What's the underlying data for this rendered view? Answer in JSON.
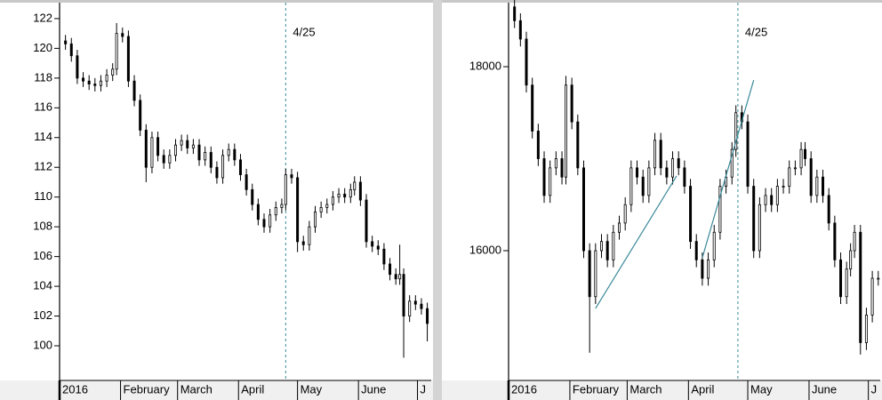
{
  "chart_data": [
    {
      "type": "candlestick",
      "xlim": [
        0,
        189
      ],
      "ylim": [
        97.67,
        123.25
      ],
      "yticks": [
        100,
        102,
        104,
        106,
        108,
        110,
        112,
        114,
        116,
        118,
        120,
        122
      ],
      "xticks": [
        {
          "value": 0,
          "label": "2016"
        },
        {
          "value": 31,
          "label": "February"
        },
        {
          "value": 60,
          "label": "March"
        },
        {
          "value": 91,
          "label": "April"
        },
        {
          "value": 121,
          "label": "May"
        },
        {
          "value": 152,
          "label": "June"
        },
        {
          "value": 182,
          "label": "J"
        }
      ],
      "marker": {
        "x": 115,
        "label": "4/25",
        "color": "#3a8a9a",
        "label_color": "#2233cc"
      },
      "color": "#000000",
      "x": [
        3,
        6,
        9,
        12,
        15,
        18,
        21,
        24,
        27,
        29,
        32,
        35,
        38,
        41,
        44,
        47,
        50,
        53,
        56,
        59,
        62,
        65,
        68,
        71,
        74,
        77,
        80,
        83,
        86,
        89,
        92,
        95,
        98,
        101,
        104,
        107,
        110,
        113,
        115,
        118,
        121,
        124,
        127,
        130,
        133,
        136,
        139,
        142,
        145,
        148,
        150,
        153,
        156,
        159,
        162,
        165,
        168,
        171,
        173,
        175,
        178,
        181,
        184,
        187
      ],
      "open": [
        120.5,
        120.3,
        119.5,
        118.0,
        117.8,
        117.6,
        117.5,
        117.8,
        118.2,
        118.6,
        121.0,
        120.8,
        117.8,
        116.5,
        114.5,
        112.0,
        114.0,
        112.8,
        112.3,
        112.8,
        113.5,
        113.8,
        113.3,
        113.5,
        112.5,
        113.0,
        112.0,
        111.3,
        112.8,
        113.2,
        112.5,
        111.5,
        110.5,
        109.5,
        108.5,
        108.0,
        108.8,
        109.3,
        109.5,
        111.5,
        111.3,
        107.0,
        106.8,
        108.0,
        109.0,
        109.3,
        109.5,
        110.0,
        110.2,
        110.0,
        110.5,
        111.0,
        109.8,
        107.0,
        106.7,
        106.5,
        105.5,
        104.8,
        104.5,
        104.8,
        102.0,
        103.0,
        102.8,
        102.5
      ],
      "high": [
        120.9,
        120.7,
        119.9,
        118.4,
        118.2,
        118.0,
        118.2,
        118.6,
        119.0,
        121.7,
        121.4,
        121.2,
        118.2,
        116.9,
        114.9,
        114.4,
        114.4,
        113.2,
        113.2,
        113.9,
        114.2,
        114.2,
        113.9,
        113.9,
        113.4,
        113.4,
        112.4,
        113.2,
        113.6,
        113.6,
        112.9,
        111.9,
        110.9,
        109.9,
        108.9,
        109.2,
        109.7,
        109.9,
        111.9,
        111.9,
        111.7,
        107.4,
        108.4,
        109.4,
        109.7,
        109.9,
        110.4,
        110.6,
        110.6,
        110.9,
        111.4,
        111.4,
        110.2,
        107.4,
        107.1,
        106.9,
        105.9,
        105.2,
        106.8,
        105.2,
        103.4,
        103.4,
        103.2,
        102.9
      ],
      "low": [
        119.9,
        119.1,
        117.6,
        117.4,
        117.2,
        117.1,
        117.1,
        117.4,
        117.8,
        118.2,
        120.4,
        117.4,
        116.1,
        114.1,
        111.0,
        111.6,
        112.4,
        111.9,
        111.9,
        112.4,
        113.1,
        112.9,
        112.9,
        112.1,
        112.1,
        111.6,
        110.9,
        110.9,
        112.4,
        112.1,
        111.1,
        110.1,
        109.1,
        108.1,
        107.6,
        107.6,
        108.4,
        108.9,
        109.1,
        110.9,
        106.3,
        106.4,
        106.4,
        107.6,
        108.6,
        108.9,
        109.1,
        109.6,
        109.6,
        109.6,
        110.1,
        109.4,
        106.6,
        106.3,
        106.1,
        105.1,
        104.4,
        104.1,
        104.1,
        99.2,
        101.6,
        102.4,
        102.1,
        100.3
      ],
      "close": [
        120.3,
        119.5,
        118.0,
        117.8,
        117.6,
        117.5,
        117.8,
        118.2,
        118.6,
        121.0,
        120.8,
        117.8,
        116.5,
        114.5,
        112.0,
        114.0,
        112.8,
        112.3,
        112.8,
        113.5,
        113.8,
        113.3,
        113.5,
        112.5,
        113.0,
        112.0,
        111.3,
        112.8,
        113.2,
        112.5,
        111.5,
        110.5,
        109.5,
        108.5,
        108.0,
        108.8,
        109.3,
        109.5,
        111.5,
        111.3,
        107.0,
        106.8,
        108.0,
        109.0,
        109.3,
        109.5,
        110.0,
        110.2,
        110.0,
        110.5,
        111.0,
        109.8,
        107.0,
        106.7,
        106.5,
        105.5,
        104.8,
        104.5,
        104.8,
        102.0,
        103.0,
        102.8,
        102.5,
        101.5
      ]
    },
    {
      "type": "candlestick",
      "xlim": [
        0,
        188
      ],
      "ylim": [
        14589,
        18725
      ],
      "yticks": [
        16000,
        18000
      ],
      "xticks": [
        {
          "value": 0,
          "label": "2016"
        },
        {
          "value": 31,
          "label": "February"
        },
        {
          "value": 60,
          "label": "March"
        },
        {
          "value": 91,
          "label": "April"
        },
        {
          "value": 121,
          "label": "May"
        },
        {
          "value": 152,
          "label": "June"
        },
        {
          "value": 182,
          "label": "J"
        }
      ],
      "marker": {
        "x": 116,
        "label": "4/25",
        "color": "#3a8a9a",
        "label_color": "#2233cc"
      },
      "color": "#000000",
      "trendlines": [
        {
          "x": [
            44,
            85
          ],
          "y": [
            15372,
            16812
          ],
          "color": "#3a8a9a"
        },
        {
          "x": [
            98,
            124
          ],
          "y": [
            15922,
            17855
          ],
          "color": "#3a8a9a"
        }
      ],
      "x": [
        3,
        6,
        9,
        12,
        15,
        18,
        21,
        24,
        27,
        29,
        32,
        35,
        38,
        41,
        44,
        47,
        50,
        53,
        56,
        59,
        62,
        65,
        68,
        71,
        74,
        77,
        80,
        83,
        86,
        89,
        92,
        95,
        98,
        101,
        104,
        107,
        110,
        113,
        115,
        118,
        121,
        124,
        127,
        130,
        133,
        136,
        139,
        142,
        145,
        148,
        150,
        153,
        156,
        159,
        162,
        165,
        168,
        171,
        173,
        175,
        178,
        181,
        184,
        187
      ],
      "open": [
        18650,
        18500,
        18300,
        17800,
        17300,
        17000,
        16600,
        16900,
        17000,
        16800,
        17800,
        17400,
        16900,
        16000,
        15500,
        16000,
        16100,
        15900,
        16200,
        16300,
        16500,
        16900,
        16800,
        16600,
        16900,
        17200,
        16900,
        16800,
        17000,
        16900,
        16700,
        16100,
        15900,
        15700,
        15900,
        16200,
        16700,
        16800,
        17100,
        17500,
        17400,
        16700,
        16000,
        16500,
        16600,
        16500,
        16700,
        16700,
        16900,
        16900,
        17100,
        17000,
        16600,
        16800,
        16600,
        16300,
        15900,
        15500,
        15800,
        16000,
        16200,
        15000,
        15300,
        15700
      ],
      "high": [
        18730,
        18580,
        18380,
        17880,
        17380,
        17080,
        16980,
        17080,
        17080,
        17900,
        17880,
        17480,
        16980,
        16080,
        16080,
        16180,
        16180,
        16280,
        16380,
        16580,
        16980,
        16980,
        16880,
        16980,
        17280,
        17280,
        16980,
        17080,
        17080,
        16980,
        16780,
        16180,
        15980,
        15980,
        16280,
        16780,
        16880,
        17180,
        17580,
        17580,
        17480,
        16780,
        16580,
        16680,
        16680,
        16780,
        16780,
        16980,
        16980,
        17180,
        17180,
        17080,
        16880,
        16880,
        16680,
        16380,
        15980,
        15880,
        16080,
        16280,
        16280,
        15380,
        15780,
        15780
      ],
      "low": [
        18420,
        18220,
        17720,
        17220,
        16920,
        16520,
        16520,
        16820,
        16720,
        16720,
        17320,
        16820,
        15920,
        14890,
        15420,
        15920,
        15820,
        15820,
        16120,
        16220,
        16420,
        16720,
        16520,
        16520,
        16820,
        16820,
        16720,
        16720,
        16820,
        16620,
        16020,
        15820,
        15620,
        15620,
        15820,
        16120,
        16620,
        16720,
        17020,
        17320,
        16620,
        15920,
        15920,
        16420,
        16420,
        16420,
        16620,
        16620,
        16820,
        16820,
        16920,
        16520,
        16520,
        16520,
        16220,
        15820,
        15420,
        15420,
        15720,
        15920,
        14870,
        14920,
        15220,
        15620
      ],
      "close": [
        18500,
        18300,
        17800,
        17300,
        17000,
        16600,
        16900,
        17000,
        16800,
        17800,
        17400,
        16900,
        16000,
        15500,
        16000,
        16100,
        15900,
        16200,
        16300,
        16500,
        16900,
        16800,
        16600,
        16900,
        17200,
        16900,
        16800,
        17000,
        16900,
        16700,
        16100,
        15900,
        15700,
        15900,
        16200,
        16700,
        16800,
        17100,
        17500,
        17400,
        16700,
        16000,
        16500,
        16600,
        16500,
        16700,
        16700,
        16900,
        16900,
        17100,
        17000,
        16600,
        16800,
        16600,
        16300,
        15900,
        15500,
        15800,
        16000,
        16200,
        15000,
        15300,
        15700,
        15700
      ]
    }
  ]
}
